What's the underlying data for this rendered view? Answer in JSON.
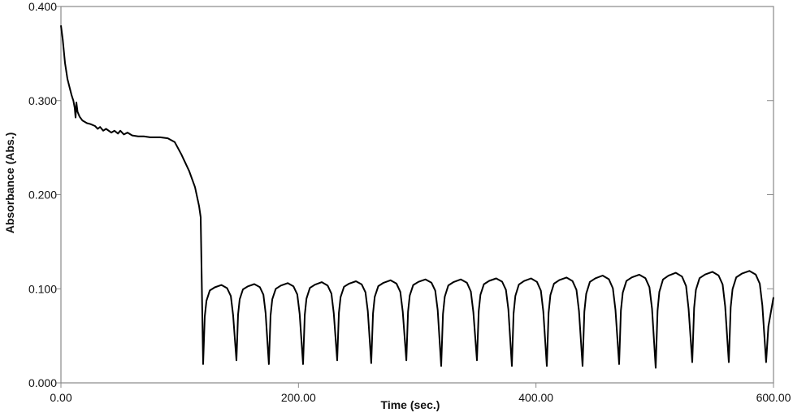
{
  "chart_data": {
    "type": "line",
    "title": "",
    "xlabel": "Time (sec.)",
    "ylabel": "Absorbance (Abs.)",
    "xlim": [
      0,
      600
    ],
    "ylim": [
      0,
      0.4
    ],
    "x_ticks": [
      0,
      200,
      400,
      600
    ],
    "x_tick_labels": [
      "0.00",
      "200.00",
      "400.00",
      "600.00"
    ],
    "y_ticks": [
      0,
      0.1,
      0.2,
      0.3,
      0.4
    ],
    "y_tick_labels": [
      "0.000",
      "0.100",
      "0.200",
      "0.300",
      "0.400"
    ],
    "grid": false,
    "series": [
      {
        "name": "Absorbance",
        "color": "#000000",
        "initial_x": [
          0,
          1.5,
          3.4,
          5.5,
          8.9,
          10.5,
          11.6,
          12.3,
          13,
          14,
          15.7,
          18,
          21.9,
          25,
          28.7,
          31,
          33,
          35.6,
          38,
          42.4,
          45,
          48,
          50,
          53,
          56,
          60,
          65,
          69.8,
          75,
          80,
          83.5,
          90,
          95.8,
          101.3,
          108,
          112.9,
          116.3,
          117.7
        ],
        "initial_y": [
          0.38,
          0.365,
          0.34,
          0.323,
          0.306,
          0.3,
          0.292,
          0.282,
          0.298,
          0.288,
          0.283,
          0.279,
          0.276,
          0.275,
          0.273,
          0.27,
          0.272,
          0.268,
          0.27,
          0.266,
          0.268,
          0.265,
          0.268,
          0.264,
          0.266,
          0.263,
          0.262,
          0.262,
          0.261,
          0.261,
          0.261,
          0.26,
          0.256,
          0.243,
          0.225,
          0.208,
          0.188,
          0.176
        ],
        "dip_times": [
          119.7,
          147.8,
          175.1,
          203.9,
          232.6,
          261.3,
          290.8,
          320.2,
          350.3,
          379.7,
          409.1,
          439.2,
          470.0,
          500.8,
          531.6,
          562.4,
          593.8
        ],
        "dip_values": [
          0.02,
          0.024,
          0.02,
          0.02,
          0.024,
          0.021,
          0.024,
          0.018,
          0.024,
          0.018,
          0.018,
          0.018,
          0.02,
          0.016,
          0.022,
          0.022,
          0.022
        ],
        "peak_values": [
          0.104,
          0.105,
          0.106,
          0.107,
          0.108,
          0.109,
          0.11,
          0.11,
          0.111,
          0.111,
          0.112,
          0.114,
          0.115,
          0.117,
          0.118,
          0.119
        ],
        "end_x": 600,
        "end_y": 0.091
      }
    ]
  }
}
